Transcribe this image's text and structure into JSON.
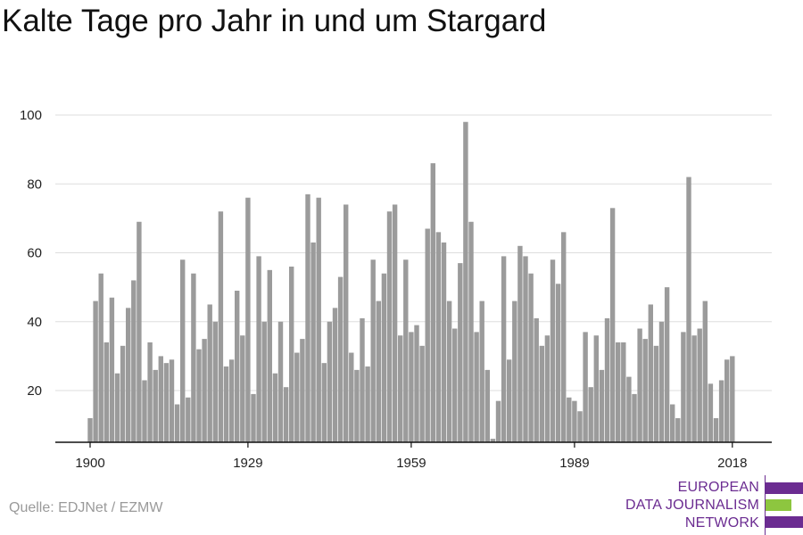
{
  "title": "Kalte Tage pro Jahr in und um Stargard",
  "source": "Quelle: EDJNet / EZMW",
  "logo": {
    "lines": [
      "EUROPEAN",
      "DATA JOURNALISM",
      "NETWORK"
    ],
    "colors": {
      "purple": "#6b2c91",
      "green": "#8dc63f"
    }
  },
  "colors": {
    "bar": "#9b9b9b",
    "grid": "#dddddd",
    "axis": "#111111"
  },
  "chart_data": {
    "type": "bar",
    "title": "Kalte Tage pro Jahr in und um Stargard",
    "xlabel": "",
    "ylabel": "",
    "x_ticks": [
      "1900",
      "1929",
      "1959",
      "1989",
      "2018"
    ],
    "y_ticks": [
      20,
      40,
      60,
      80,
      100
    ],
    "ylim": [
      5,
      100
    ],
    "grid": true,
    "series": [
      {
        "x": [
          1900,
          1901,
          1902,
          1903,
          1904,
          1905,
          1906,
          1907,
          1908,
          1909,
          1910,
          1911,
          1912,
          1913,
          1914,
          1915,
          1916,
          1917,
          1918,
          1919,
          1920,
          1921,
          1922,
          1923,
          1924,
          1925,
          1926,
          1927,
          1928,
          1929,
          1930,
          1931,
          1932,
          1933,
          1934,
          1935,
          1936,
          1937,
          1938,
          1939,
          1940,
          1941,
          1942,
          1943,
          1944,
          1945,
          1946,
          1947,
          1948,
          1949,
          1950,
          1951,
          1952,
          1953,
          1954,
          1955,
          1956,
          1957,
          1958,
          1959,
          1960,
          1961,
          1962,
          1963,
          1964,
          1965,
          1966,
          1967,
          1968,
          1969,
          1970,
          1971,
          1972,
          1973,
          1974,
          1975,
          1976,
          1977,
          1978,
          1979,
          1980,
          1981,
          1982,
          1983,
          1984,
          1985,
          1986,
          1987,
          1988,
          1989,
          1990,
          1991,
          1992,
          1993,
          1994,
          1995,
          1996,
          1997,
          1998,
          1999,
          2000,
          2001,
          2002,
          2003,
          2004,
          2005,
          2006,
          2007,
          2008,
          2009,
          2010,
          2011,
          2012,
          2013,
          2014,
          2015,
          2016,
          2017,
          2018
        ],
        "values": [
          12,
          46,
          54,
          34,
          47,
          25,
          33,
          44,
          52,
          69,
          23,
          34,
          26,
          30,
          28,
          29,
          16,
          58,
          18,
          54,
          32,
          35,
          45,
          40,
          72,
          27,
          29,
          49,
          36,
          76,
          19,
          59,
          40,
          55,
          25,
          40,
          21,
          56,
          31,
          35,
          77,
          63,
          76,
          28,
          40,
          44,
          53,
          74,
          31,
          26,
          41,
          27,
          58,
          46,
          54,
          72,
          74,
          36,
          58,
          37,
          39,
          33,
          67,
          86,
          66,
          63,
          46,
          38,
          57,
          98,
          69,
          37,
          46,
          26,
          6,
          17,
          59,
          29,
          46,
          62,
          59,
          54,
          41,
          33,
          36,
          58,
          51,
          66,
          18,
          17,
          14,
          37,
          21,
          36,
          26,
          41,
          73,
          34,
          34,
          24,
          19,
          38,
          35,
          45,
          33,
          40,
          50,
          16,
          12,
          37,
          82,
          36,
          38,
          46,
          22,
          12,
          23,
          29,
          30
        ]
      }
    ]
  }
}
